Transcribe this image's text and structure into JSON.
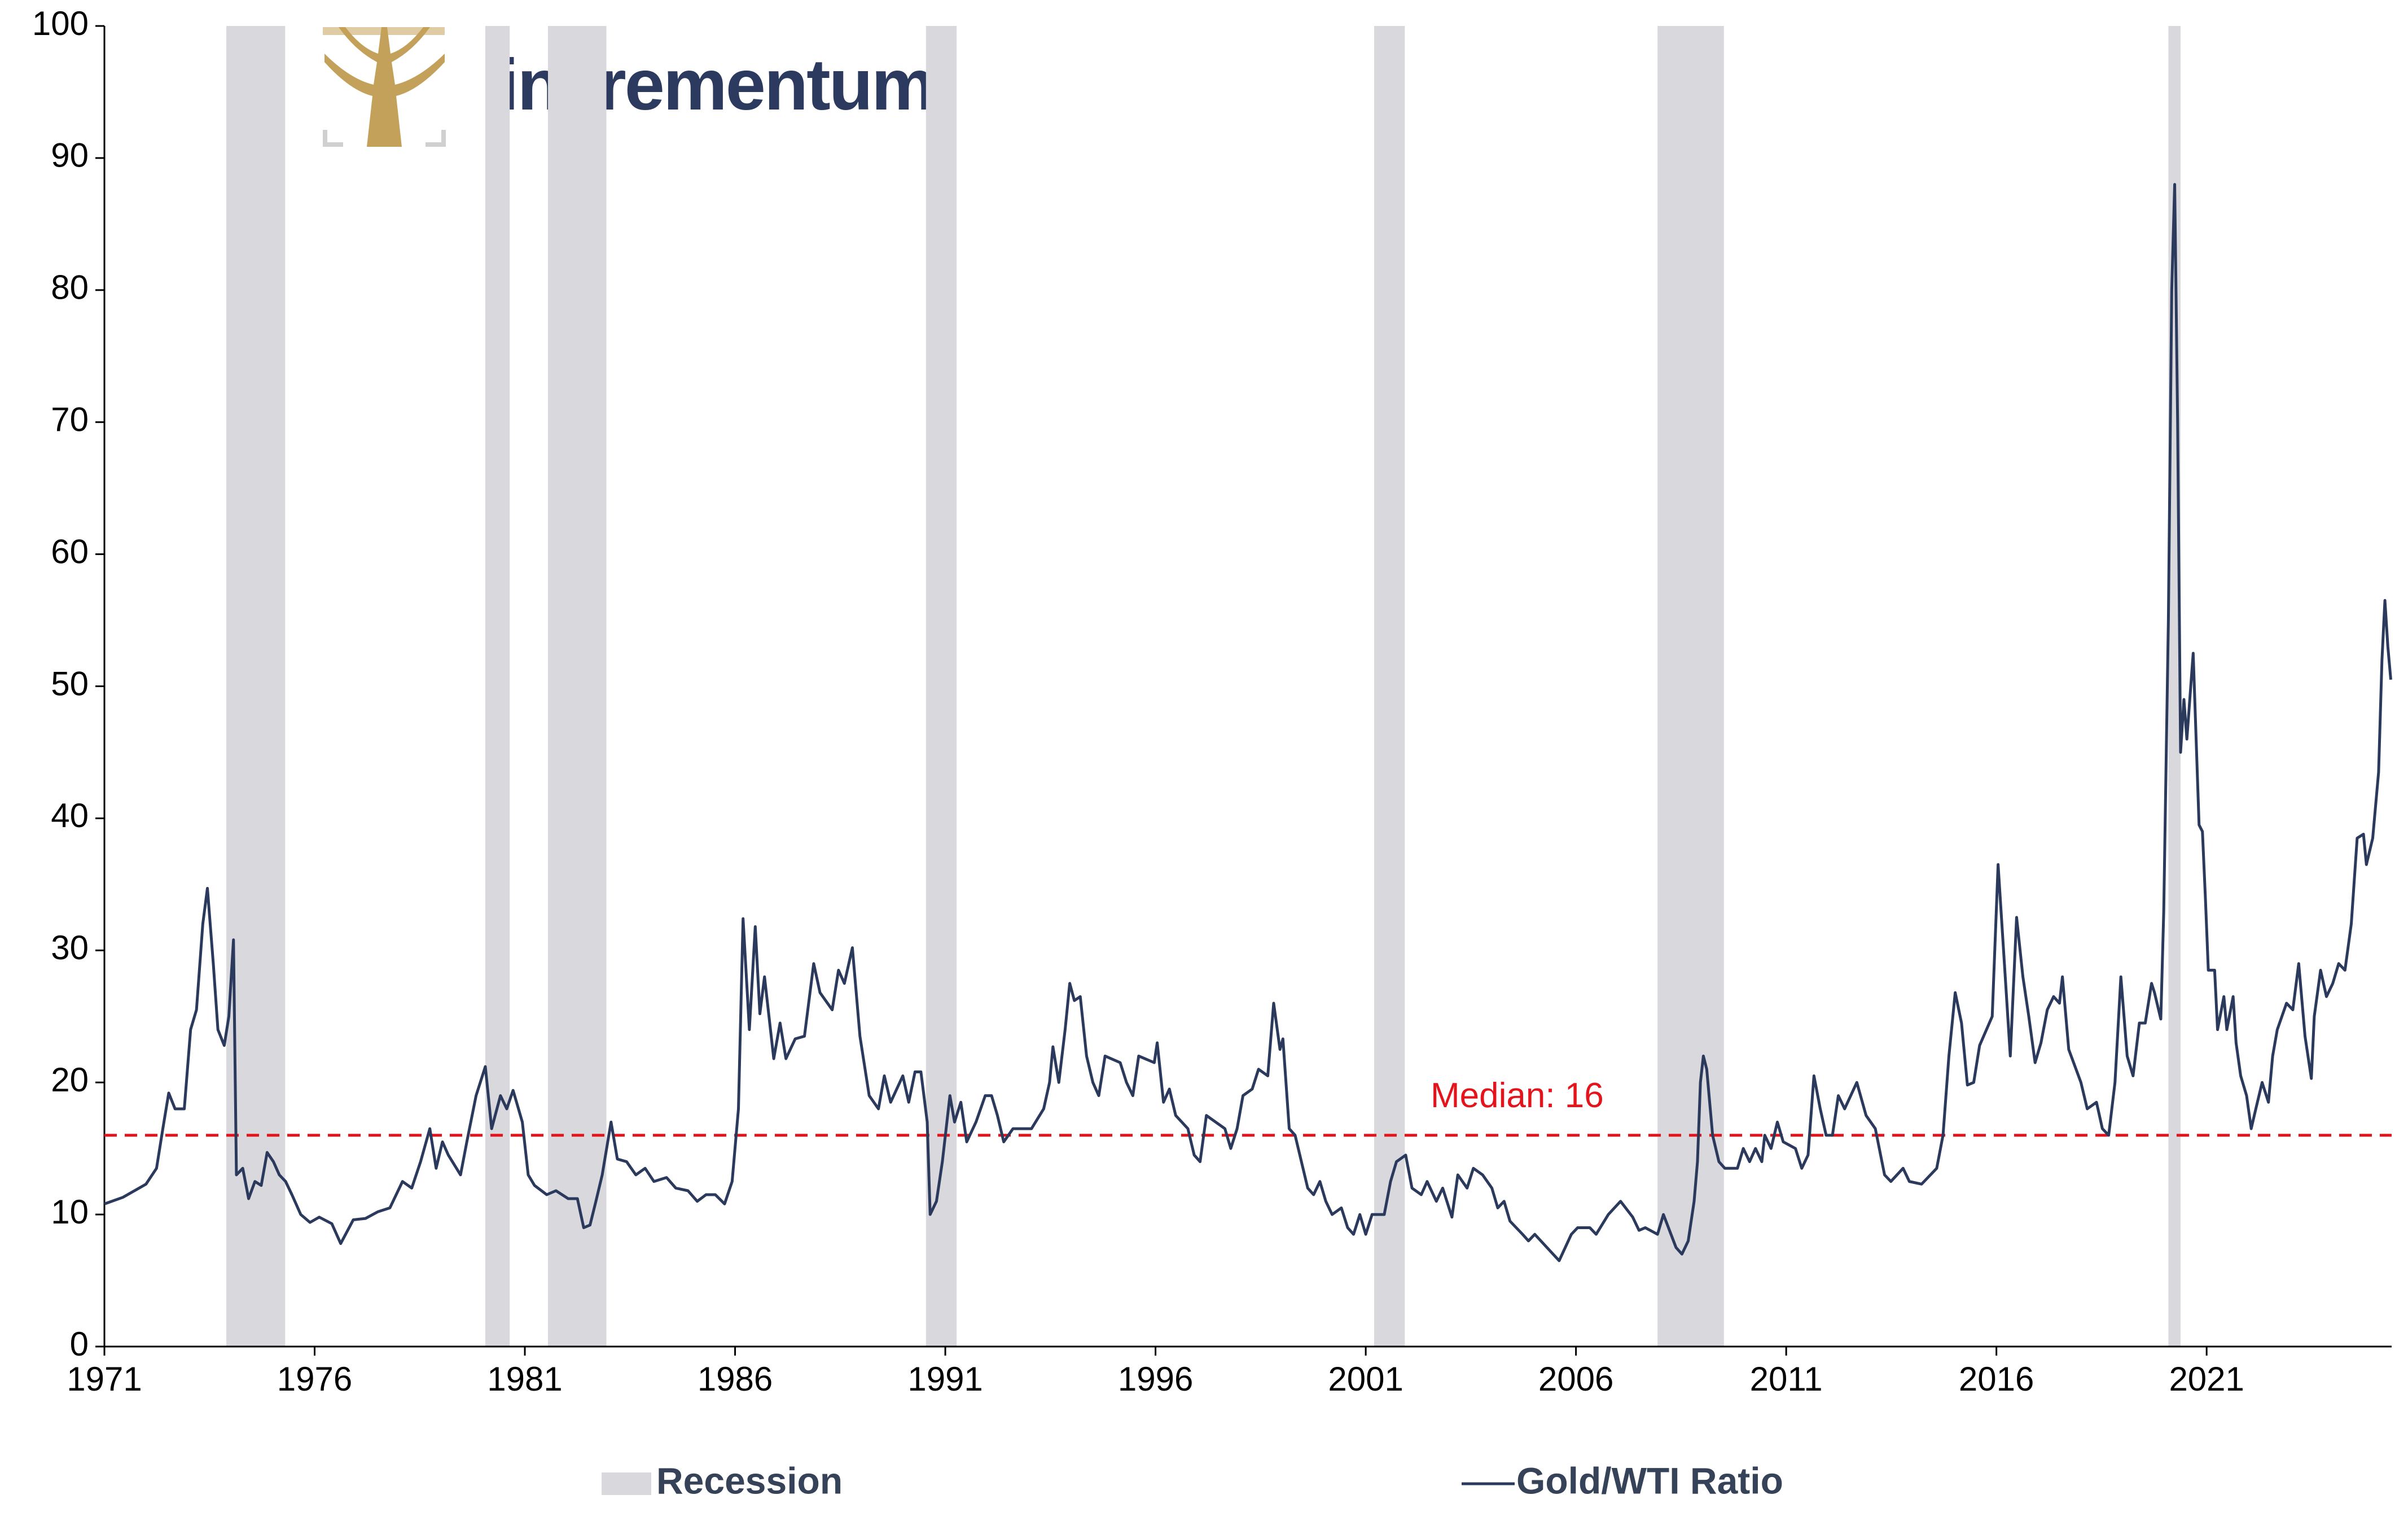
{
  "logo": {
    "text": "incrementum"
  },
  "chart_data": {
    "type": "line",
    "xlim": [
      1971,
      2025.4
    ],
    "xticks": [
      1971,
      1976,
      1981,
      1986,
      1991,
      1996,
      2001,
      2006,
      2011,
      2016,
      2021
    ],
    "ylim": [
      0,
      100
    ],
    "yticks": [
      0,
      10,
      20,
      30,
      40,
      50,
      60,
      70,
      80,
      90,
      100
    ],
    "grid": false,
    "recession": {
      "name": "Recession",
      "color": "#d9d8dd",
      "spans": [
        [
          1973.9,
          1975.3
        ],
        [
          1980.06,
          1980.64
        ],
        [
          1981.55,
          1982.94
        ],
        [
          1990.54,
          1991.27
        ],
        [
          2001.2,
          2001.93
        ],
        [
          2007.94,
          2009.52
        ],
        [
          2020.09,
          2020.38
        ]
      ]
    },
    "median": {
      "value": 16,
      "label": "Median: 16",
      "color": "#e3141b"
    },
    "x": [
      1971.0,
      1971.44,
      1971.99,
      1972.24,
      1972.39,
      1972.53,
      1972.68,
      1972.9,
      1973.05,
      1973.19,
      1973.34,
      1973.45,
      1973.59,
      1973.7,
      1973.85,
      1973.96,
      1974.07,
      1974.14,
      1974.29,
      1974.43,
      1974.58,
      1974.73,
      1974.87,
      1975.02,
      1975.16,
      1975.31,
      1975.46,
      1975.67,
      1975.89,
      1976.11,
      1976.41,
      1976.62,
      1976.92,
      1977.21,
      1977.5,
      1977.79,
      1978.09,
      1978.31,
      1978.52,
      1978.74,
      1978.89,
      1979.04,
      1979.18,
      1979.47,
      1979.62,
      1979.84,
      1980.06,
      1980.21,
      1980.42,
      1980.57,
      1980.72,
      1980.94,
      1981.08,
      1981.23,
      1981.52,
      1981.74,
      1982.03,
      1982.25,
      1982.4,
      1982.55,
      1982.69,
      1982.84,
      1983.05,
      1983.2,
      1983.42,
      1983.64,
      1983.86,
      1984.07,
      1984.37,
      1984.59,
      1984.88,
      1985.1,
      1985.31,
      1985.53,
      1985.75,
      1985.93,
      1986.08,
      1986.19,
      1986.34,
      1986.48,
      1986.59,
      1986.7,
      1986.92,
      1987.07,
      1987.21,
      1987.43,
      1987.65,
      1987.87,
      1988.02,
      1988.31,
      1988.46,
      1988.6,
      1988.79,
      1988.97,
      1989.19,
      1989.41,
      1989.55,
      1989.7,
      1989.99,
      1990.13,
      1990.28,
      1990.42,
      1990.57,
      1990.64,
      1990.79,
      1990.93,
      1991.11,
      1991.22,
      1991.37,
      1991.51,
      1991.73,
      1991.95,
      1992.1,
      1992.24,
      1992.39,
      1992.61,
      1993.05,
      1993.34,
      1993.48,
      1993.56,
      1993.7,
      1993.85,
      1993.96,
      1994.07,
      1994.21,
      1994.36,
      1994.51,
      1994.65,
      1994.8,
      1995.16,
      1995.31,
      1995.46,
      1995.6,
      1995.97,
      1996.04,
      1996.19,
      1996.33,
      1996.48,
      1996.77,
      1996.92,
      1997.06,
      1997.21,
      1997.65,
      1997.79,
      1997.94,
      1998.08,
      1998.3,
      1998.45,
      1998.67,
      1998.81,
      1998.96,
      1999.03,
      1999.18,
      1999.32,
      1999.47,
      1999.62,
      1999.76,
      1999.91,
      2000.05,
      2000.2,
      2000.42,
      2000.57,
      2000.71,
      2000.86,
      2001.0,
      2001.15,
      2001.44,
      2001.59,
      2001.73,
      2001.95,
      2002.1,
      2002.32,
      2002.46,
      2002.68,
      2002.83,
      2003.05,
      2003.19,
      2003.41,
      2003.56,
      2003.78,
      2004.0,
      2004.14,
      2004.29,
      2004.43,
      2004.73,
      2004.87,
      2005.02,
      2005.31,
      2005.6,
      2005.89,
      2006.04,
      2006.33,
      2006.48,
      2006.77,
      2007.06,
      2007.35,
      2007.5,
      2007.65,
      2007.94,
      2008.08,
      2008.38,
      2008.52,
      2008.67,
      2008.81,
      2008.89,
      2008.96,
      2009.03,
      2009.11,
      2009.25,
      2009.4,
      2009.54,
      2009.84,
      2009.98,
      2010.13,
      2010.27,
      2010.42,
      2010.49,
      2010.64,
      2010.79,
      2010.93,
      2011.22,
      2011.37,
      2011.52,
      2011.66,
      2011.81,
      2011.95,
      2012.1,
      2012.24,
      2012.39,
      2012.68,
      2012.9,
      2013.12,
      2013.34,
      2013.49,
      2013.78,
      2013.93,
      2014.22,
      2014.58,
      2014.73,
      2014.87,
      2015.02,
      2015.17,
      2015.31,
      2015.46,
      2015.6,
      2015.9,
      2016.04,
      2016.19,
      2016.33,
      2016.48,
      2016.63,
      2016.77,
      2016.92,
      2017.06,
      2017.21,
      2017.36,
      2017.5,
      2017.57,
      2017.72,
      2018.01,
      2018.16,
      2018.38,
      2018.52,
      2018.67,
      2018.82,
      2018.96,
      2019.11,
      2019.25,
      2019.4,
      2019.54,
      2019.69,
      2019.76,
      2019.91,
      2019.98,
      2020.09,
      2020.17,
      2020.24,
      2020.31,
      2020.38,
      2020.46,
      2020.53,
      2020.68,
      2020.82,
      2020.9,
      2020.97,
      2021.04,
      2021.19,
      2021.26,
      2021.41,
      2021.48,
      2021.63,
      2021.7,
      2021.81,
      2021.95,
      2022.06,
      2022.17,
      2022.32,
      2022.47,
      2022.57,
      2022.68,
      2022.9,
      2023.05,
      2023.19,
      2023.34,
      2023.49,
      2023.56,
      2023.71,
      2023.85,
      2024.0,
      2024.14,
      2024.29,
      2024.44,
      2024.58,
      2024.73,
      2024.8,
      2024.95,
      2025.09,
      2025.17,
      2025.24,
      2025.31,
      2025.38
    ],
    "series": [
      {
        "name": "Gold/WTI Ratio",
        "color": "#2b3a5c",
        "values": [
          10.8,
          11.3,
          12.3,
          13.5,
          16.5,
          19.2,
          18,
          18,
          24,
          25.5,
          32,
          34.7,
          29,
          24,
          22.8,
          25,
          30.8,
          13,
          13.5,
          11.2,
          12.5,
          12.2,
          14.7,
          14,
          13,
          12.5,
          11.5,
          10,
          9.4,
          9.8,
          9.3,
          7.8,
          9.6,
          9.7,
          10.2,
          10.5,
          12.5,
          12,
          14,
          16.5,
          13.5,
          15.5,
          14.5,
          13,
          15.5,
          19,
          21.2,
          16.5,
          19,
          18,
          19.4,
          17,
          13,
          12.2,
          11.5,
          11.8,
          11.2,
          11.2,
          9,
          9.2,
          11,
          13,
          17,
          14.2,
          14,
          13,
          13.5,
          12.5,
          12.8,
          12,
          11.8,
          11,
          11.5,
          11.5,
          10.8,
          12.5,
          18,
          32.4,
          24,
          31.8,
          25.2,
          28,
          21.8,
          24.5,
          21.8,
          23.3,
          23.5,
          29,
          26.8,
          25.5,
          28.5,
          27.5,
          30.2,
          23.5,
          19,
          18,
          20.5,
          18.5,
          20.5,
          18.5,
          20.8,
          20.8,
          17,
          10,
          11,
          14,
          19,
          17,
          18.5,
          15.5,
          17,
          19,
          19,
          17.5,
          15.5,
          16.5,
          16.5,
          18,
          20,
          22.7,
          20,
          24,
          27.5,
          26.2,
          26.5,
          22,
          20,
          19,
          22,
          21.5,
          20,
          19,
          22,
          21.5,
          23,
          18.5,
          19.5,
          17.5,
          16.5,
          14.5,
          14,
          17.5,
          16.5,
          15,
          16.5,
          19,
          19.5,
          21,
          20.5,
          26,
          22.5,
          23.3,
          16.5,
          16,
          14,
          12,
          11.5,
          12.5,
          11,
          10,
          10.5,
          9,
          8.5,
          10,
          8.5,
          10,
          10,
          12.5,
          14,
          14.5,
          12,
          11.5,
          12.5,
          11,
          12,
          9.8,
          13,
          12,
          13.5,
          13,
          12,
          10.5,
          11,
          9.5,
          8.5,
          8,
          8.5,
          7.5,
          6.5,
          8.5,
          9,
          9,
          8.5,
          10,
          11,
          9.8,
          8.8,
          9,
          8.5,
          10,
          7.5,
          7,
          8,
          11,
          14,
          20,
          22,
          21,
          16,
          14,
          13.5,
          13.5,
          15,
          14,
          15,
          14,
          16,
          15,
          17,
          15.5,
          15,
          13.5,
          14.5,
          20.5,
          18,
          16,
          16,
          19,
          18,
          20,
          17.5,
          16.5,
          13,
          12.5,
          13.5,
          12.5,
          12.3,
          13.5,
          16,
          22,
          26.8,
          24.5,
          19.8,
          20,
          22.8,
          25,
          36.5,
          29,
          22,
          32.5,
          28,
          25,
          21.5,
          23,
          25.5,
          26.5,
          26,
          28,
          22.5,
          20,
          18,
          18.5,
          16.5,
          16,
          20,
          28,
          22,
          20.5,
          24.5,
          24.5,
          27.5,
          26.8,
          24.8,
          33,
          55,
          80,
          88,
          70,
          45,
          49,
          46,
          52.5,
          39.5,
          39,
          34,
          28.5,
          28.5,
          24,
          26.5,
          24,
          26.5,
          23,
          20.5,
          19,
          16.5,
          18,
          20,
          18.5,
          22,
          24,
          26,
          25.5,
          29,
          23.5,
          20.3,
          25,
          28.5,
          26.5,
          27.5,
          29,
          28.5,
          32,
          38.5,
          38.8,
          36.5,
          38.5,
          43.5,
          52,
          56.5,
          53,
          50.5
        ]
      }
    ]
  }
}
